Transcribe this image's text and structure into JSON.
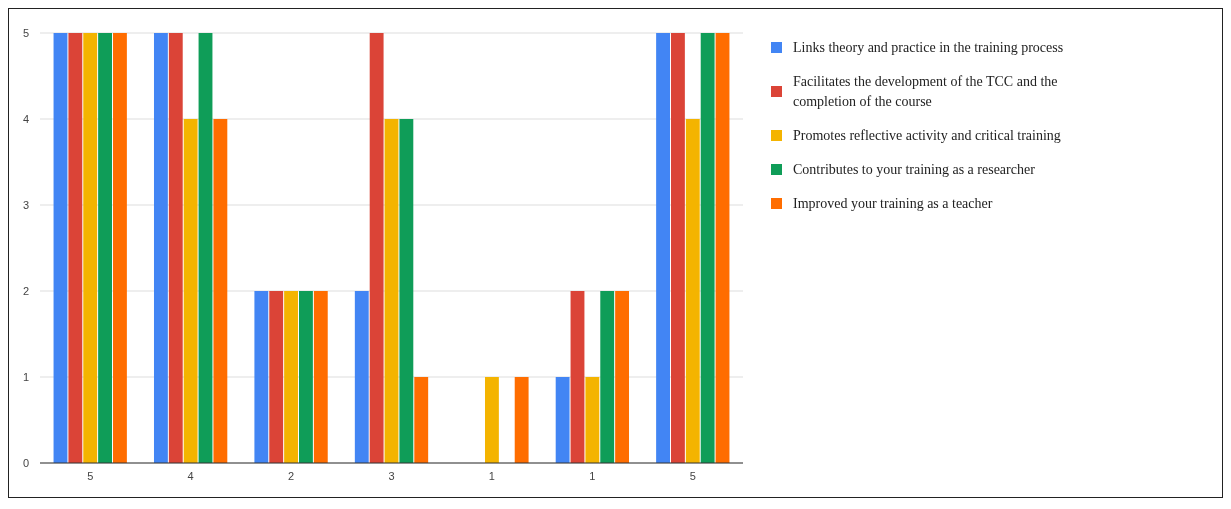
{
  "chart_data": {
    "type": "bar",
    "categories": [
      "5",
      "4",
      "2",
      "3",
      "1",
      "1",
      "5"
    ],
    "series": [
      {
        "name": "Links theory and practice in the training process",
        "color": "#4285f4",
        "values": [
          5,
          5,
          2,
          2,
          0,
          1,
          5
        ]
      },
      {
        "name": "Facilitates the development of the TCC and the completion of the course",
        "color": "#db4437",
        "values": [
          5,
          5,
          2,
          5,
          0,
          2,
          5
        ]
      },
      {
        "name": "Promotes reflective activity and critical training",
        "color": "#f4b400",
        "values": [
          5,
          4,
          2,
          4,
          1,
          1,
          4
        ]
      },
      {
        "name": "Contributes to your training as a researcher",
        "color": "#0f9d58",
        "values": [
          5,
          5,
          2,
          4,
          0,
          2,
          5
        ]
      },
      {
        "name": "Improved your training as a teacher",
        "color": "#ff6d00",
        "values": [
          5,
          4,
          2,
          1,
          1,
          2,
          5
        ]
      }
    ],
    "ylim": [
      0,
      5
    ],
    "yticks": [
      0,
      1,
      2,
      3,
      4,
      5
    ],
    "grid": "y",
    "legend": "right"
  }
}
